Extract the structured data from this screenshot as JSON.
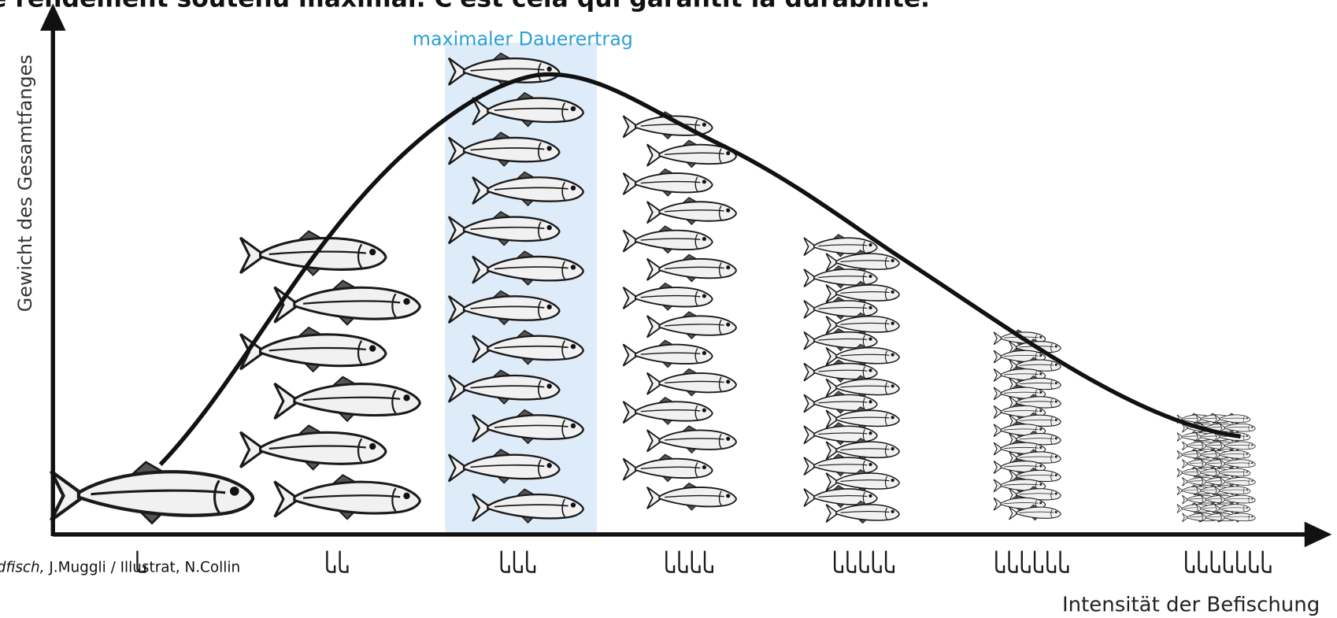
{
  "title": "e rendement soutenu maximal. C'est cela qui garantit la durabilité.",
  "highlight_label": "maximaler Dauerertrag",
  "y_axis_label": "Gewicht des Gesamtfanges",
  "x_axis_label": "Intensität der Befischung",
  "credit": {
    "source": "dfisch,",
    "author": " J.Muggli / Illustrat,  N.Collin"
  }
}
